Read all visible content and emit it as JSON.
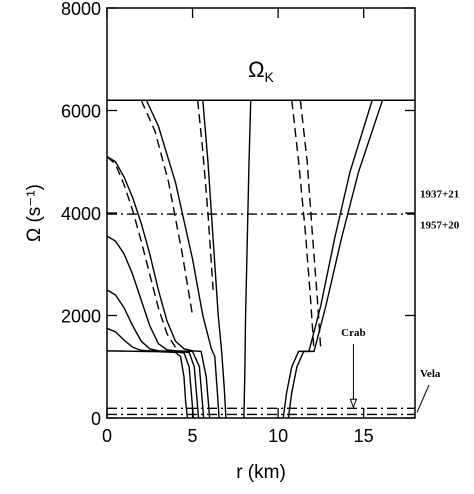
{
  "chart_data": {
    "type": "line",
    "xlabel": "r  (km)",
    "ylabel": "Ω  (s⁻¹)",
    "xlim": [
      0,
      18
    ],
    "ylim": [
      0,
      8000
    ],
    "xticks": [
      0,
      5,
      10,
      15
    ],
    "yticks": [
      0,
      2000,
      4000,
      6000,
      8000
    ],
    "series": [
      {
        "color": "#000",
        "dash": "solid",
        "x": [
          0,
          18
        ],
        "values": [
          6200,
          6200
        ]
      },
      {
        "color": "#000",
        "dash": "dashdot",
        "x": [
          0,
          18
        ],
        "values": [
          3980,
          3980
        ]
      },
      {
        "color": "#000",
        "dash": "dashdot",
        "x": [
          0,
          18
        ],
        "values": [
          190,
          190
        ]
      },
      {
        "color": "#000",
        "dash": "dashdot",
        "x": [
          0,
          18
        ],
        "values": [
          70,
          70
        ]
      },
      {
        "color": "#000",
        "dash": "solid",
        "x": [
          0,
          1,
          2,
          3,
          4,
          4.3,
          4.5,
          4.6,
          4.7
        ],
        "values": [
          1310,
          1305,
          1300,
          1295,
          1280,
          1200,
          800,
          300,
          0
        ]
      },
      {
        "color": "#000",
        "dash": "solid",
        "x": [
          0,
          0.5,
          1,
          1.5,
          2,
          3,
          4,
          4.5,
          4.8,
          4.95,
          5.05
        ],
        "values": [
          1750,
          1680,
          1520,
          1380,
          1320,
          1300,
          1290,
          1270,
          1000,
          400,
          0
        ]
      },
      {
        "color": "#000",
        "dash": "solid",
        "x": [
          0,
          0.5,
          1,
          1.5,
          2,
          2.5,
          3,
          4,
          4.8,
          5.1,
          5.25,
          5.35
        ],
        "values": [
          2500,
          2400,
          2150,
          1800,
          1500,
          1350,
          1310,
          1300,
          1280,
          1000,
          400,
          0
        ]
      },
      {
        "color": "#000",
        "dash": "solid",
        "x": [
          0,
          0.5,
          1,
          1.5,
          2,
          2.5,
          3,
          3.5,
          4,
          5,
          5.4,
          5.55,
          5.65
        ],
        "values": [
          3550,
          3450,
          3200,
          2800,
          2300,
          1800,
          1450,
          1330,
          1310,
          1300,
          1000,
          400,
          0
        ]
      },
      {
        "color": "#000",
        "dash": "solid",
        "x": [
          0,
          0.5,
          1,
          1.5,
          2,
          2.5,
          3,
          3.5,
          4,
          4.5,
          5,
          5.5,
          5.8,
          6.0
        ],
        "values": [
          5100,
          5000,
          4700,
          4300,
          3800,
          3200,
          2500,
          1900,
          1500,
          1350,
          1310,
          1300,
          800,
          0
        ]
      },
      {
        "color": "#000",
        "dash": "dashed",
        "x": [
          0,
          0.5,
          1,
          1.5,
          2,
          2.5,
          3,
          3.5,
          4
        ],
        "values": [
          5100,
          4950,
          4550,
          4050,
          3450,
          2800,
          2150,
          1650,
          1380
        ]
      },
      {
        "color": "#000",
        "dash": "solid",
        "x": [
          2.3,
          3,
          4,
          5,
          5.6,
          6.1,
          6.3,
          6.45,
          6.55
        ],
        "values": [
          6200,
          5700,
          4600,
          3100,
          2000,
          1350,
          1200,
          500,
          0
        ]
      },
      {
        "color": "#000",
        "dash": "dashed",
        "x": [
          2.0,
          2.8,
          3.6,
          4.4,
          5.0
        ],
        "values": [
          6200,
          5600,
          4600,
          3200,
          2000
        ]
      },
      {
        "color": "#000",
        "dash": "solid",
        "x": [
          5.6,
          5.9,
          6.2,
          6.5,
          6.7,
          6.85,
          6.95
        ],
        "values": [
          6200,
          5000,
          3500,
          2000,
          1300,
          600,
          0
        ]
      },
      {
        "color": "#000",
        "dash": "dashed",
        "x": [
          5.3,
          5.6,
          5.9,
          6.2
        ],
        "values": [
          6200,
          5200,
          4000,
          2500
        ]
      },
      {
        "color": "#000",
        "dash": "solid",
        "x": [
          8.4,
          8.3,
          8.2,
          8.1,
          8.05,
          8.0
        ],
        "values": [
          6200,
          5000,
          3500,
          2000,
          800,
          0
        ]
      },
      {
        "color": "#000",
        "dash": "dashed",
        "x": [
          10.8,
          11.2,
          11.6,
          11.9,
          12.1
        ],
        "values": [
          6200,
          5000,
          3600,
          2300,
          1300
        ]
      },
      {
        "color": "#000",
        "dash": "dashed",
        "x": [
          11.3,
          11.7,
          12.0,
          12.3,
          12.5
        ],
        "values": [
          6200,
          5000,
          3600,
          2300,
          1300
        ]
      },
      {
        "color": "#000",
        "dash": "solid",
        "x": [
          10.3,
          10.5,
          10.8,
          11.2,
          11.8,
          12.5,
          13.3,
          14.2,
          15.5
        ],
        "values": [
          0,
          500,
          1000,
          1300,
          1300,
          2200,
          3500,
          4800,
          6200
        ]
      },
      {
        "color": "#000",
        "dash": "solid",
        "x": [
          10.6,
          10.8,
          11.1,
          11.5,
          12.1,
          12.8,
          13.7,
          14.7,
          16.1
        ],
        "values": [
          0,
          500,
          1000,
          1300,
          1300,
          2200,
          3500,
          4800,
          6200
        ]
      }
    ],
    "annotations": [
      {
        "text": "Ω",
        "sub": "K",
        "x": 9,
        "y": 6650
      },
      {
        "text": "1937+21",
        "x": 18,
        "y": 4300
      },
      {
        "text": "1957+20",
        "x": 18,
        "y": 3700
      },
      {
        "text": "Crab",
        "x": 14.4,
        "y": 1600
      },
      {
        "text": "Vela",
        "x": 18,
        "y": 800
      }
    ]
  }
}
